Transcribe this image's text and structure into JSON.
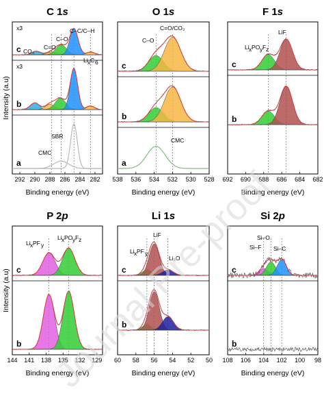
{
  "figure": {
    "ylabel": "Intensity (a.u)",
    "watermark": "Journal Pre-proof"
  },
  "colors": {
    "green": "#33cc33",
    "blue": "#1e90ff",
    "orange": "#f5b642",
    "red": "#b05050",
    "pink": "#e060e0",
    "cyan": "#30b0e0",
    "navy": "#2020a0",
    "fit": "#e04040",
    "raw": "#555555"
  },
  "chart_data": [
    {
      "id": "c1s",
      "type": "line",
      "title_main": "C 1",
      "title_orb": "s",
      "xlabel": "Binding energy (eV)",
      "xlim": [
        293,
        281
      ],
      "xticks": [
        292,
        290,
        288,
        286,
        284,
        282
      ],
      "tick_labels": [
        "292",
        "290",
        "288",
        "286",
        "284",
        "282"
      ],
      "multipliers": [
        "x3",
        "x3"
      ],
      "rows": [
        {
          "letter": "c",
          "peaks": [
            {
              "label": "CO₃",
              "center": 289.8,
              "height": 0.12,
              "width": 0.6,
              "color": "cyan"
            },
            {
              "label": "C=O",
              "center": 287.8,
              "height": 0.1,
              "width": 0.6,
              "color": "orange"
            },
            {
              "label": "C–O",
              "center": 286.5,
              "height": 0.35,
              "width": 0.7,
              "color": "green"
            },
            {
              "label": "C–C/C–H",
              "center": 284.8,
              "height": 0.9,
              "width": 0.55,
              "color": "blue"
            },
            {
              "label": "LixC6",
              "center": 282.6,
              "height": 0.1,
              "width": 0.5,
              "color": "orange"
            }
          ]
        },
        {
          "letter": "b",
          "peaks": [
            {
              "center": 290.0,
              "height": 0.15,
              "width": 0.6,
              "color": "cyan"
            },
            {
              "center": 288.0,
              "height": 0.12,
              "width": 0.6,
              "color": "orange"
            },
            {
              "center": 286.6,
              "height": 0.25,
              "width": 0.7,
              "color": "green"
            },
            {
              "center": 284.8,
              "height": 0.9,
              "width": 0.5,
              "color": "blue"
            },
            {
              "center": 282.6,
              "height": 0.08,
              "width": 0.5,
              "color": "orange"
            }
          ]
        },
        {
          "letter": "a",
          "reference": true,
          "labels": [
            "CMC",
            "SBR"
          ],
          "peaks": [
            {
              "center": 284.8,
              "height": 0.9,
              "width": 0.45,
              "color": "gray"
            },
            {
              "center": 286.5,
              "height": 0.15,
              "width": 1.0,
              "color": "gray"
            }
          ]
        }
      ],
      "refline": [
        287.8,
        286.5,
        284.8,
        282.6
      ]
    },
    {
      "id": "o1s",
      "type": "line",
      "title_main": "O 1",
      "title_orb": "s",
      "xlabel": "Binding energy (eV)",
      "xlim": [
        538,
        528
      ],
      "xticks": [
        538,
        536,
        534,
        532,
        530,
        528
      ],
      "tick_labels": [
        "538",
        "536",
        "534",
        "532",
        "530",
        "528"
      ],
      "rows": [
        {
          "letter": "c",
          "peaks": [
            {
              "label": "C–O",
              "center": 533.8,
              "height": 0.35,
              "width": 0.8,
              "color": "green"
            },
            {
              "label": "C=O/CO₃",
              "center": 532.0,
              "height": 0.75,
              "width": 0.9,
              "color": "orange"
            }
          ]
        },
        {
          "letter": "b",
          "peaks": [
            {
              "center": 533.8,
              "height": 0.35,
              "width": 0.8,
              "color": "green"
            },
            {
              "center": 532.0,
              "height": 0.85,
              "width": 0.9,
              "color": "orange"
            }
          ]
        },
        {
          "letter": "a",
          "reference": true,
          "labels": [
            "CMC"
          ],
          "peaks": [
            {
              "center": 533.8,
              "height": 0.6,
              "width": 1.0,
              "color": "green"
            }
          ]
        }
      ],
      "refline": [
        533.8,
        532.0
      ]
    },
    {
      "id": "f1s",
      "type": "line",
      "title_main": "F 1",
      "title_orb": "s",
      "xlabel": "Binding energy (eV)",
      "xlim": [
        692,
        682
      ],
      "xticks": [
        692,
        690,
        688,
        686,
        684,
        682
      ],
      "tick_labels": [
        "692",
        "690",
        "688",
        "686",
        "684",
        "682"
      ],
      "rows": [
        {
          "letter": "c",
          "peaks": [
            {
              "label": "LixPOyFz",
              "center": 687.5,
              "height": 0.35,
              "width": 0.7,
              "color": "green"
            },
            {
              "label": "LiF",
              "center": 685.5,
              "height": 0.7,
              "width": 0.7,
              "color": "red"
            }
          ]
        },
        {
          "letter": "b",
          "peaks": [
            {
              "center": 687.5,
              "height": 0.3,
              "width": 0.7,
              "color": "green"
            },
            {
              "center": 685.5,
              "height": 0.85,
              "width": 0.7,
              "color": "red"
            }
          ]
        }
      ],
      "refline": [
        687.5,
        685.5
      ]
    },
    {
      "id": "p2p",
      "type": "line",
      "title_main": "P 2",
      "title_orb": "p",
      "xlabel": "Binding energy (eV)",
      "xlim": [
        144,
        128
      ],
      "xticks": [
        144,
        141,
        138,
        135,
        132,
        129
      ],
      "tick_labels": [
        "144",
        "141",
        "138",
        "135",
        "132",
        "129"
      ],
      "rows": [
        {
          "letter": "c",
          "peaks": [
            {
              "label": "LixPFy",
              "center": 137.5,
              "height": 0.5,
              "width": 1.1,
              "color": "pink"
            },
            {
              "label": "LixPOyFz",
              "center": 134.0,
              "height": 0.6,
              "width": 1.1,
              "color": "green"
            }
          ]
        },
        {
          "letter": "b",
          "peaks": [
            {
              "center": 137.5,
              "height": 0.85,
              "width": 1.0,
              "color": "pink"
            },
            {
              "center": 134.0,
              "height": 0.9,
              "width": 1.0,
              "color": "green"
            }
          ]
        }
      ],
      "refline": [
        137.5,
        134.0
      ]
    },
    {
      "id": "li1s",
      "type": "line",
      "title_main": "Li 1",
      "title_orb": "s",
      "xlabel": "Binding energy (eV)",
      "xlim": [
        60,
        50
      ],
      "xticks": [
        60,
        58,
        56,
        54,
        52,
        50
      ],
      "tick_labels": [
        "60",
        "58",
        "56",
        "54",
        "52",
        "50"
      ],
      "rows": [
        {
          "letter": "c",
          "peaks": [
            {
              "label": "LixPFy",
              "center": 56.8,
              "height": 0.12,
              "width": 0.5,
              "color": "green"
            },
            {
              "label": "LiF",
              "center": 56.0,
              "height": 0.7,
              "width": 0.55,
              "color": "red"
            },
            {
              "label": "Li₂O",
              "center": 54.5,
              "height": 0.12,
              "width": 0.6,
              "color": "navy"
            }
          ]
        },
        {
          "letter": "b",
          "peaks": [
            {
              "center": 56.8,
              "height": 0.12,
              "width": 0.5,
              "color": "green"
            },
            {
              "center": 56.0,
              "height": 0.85,
              "width": 0.55,
              "color": "red"
            },
            {
              "center": 54.5,
              "height": 0.3,
              "width": 0.6,
              "color": "navy"
            }
          ]
        }
      ],
      "refline": [
        56.8,
        56.0,
        54.5
      ]
    },
    {
      "id": "si2p",
      "type": "line",
      "title_main": "Si 2",
      "title_orb": "p",
      "xlabel": "Binding energy (eV)",
      "xlim": [
        108,
        98
      ],
      "xticks": [
        108,
        106,
        104,
        102,
        100,
        98
      ],
      "tick_labels": [
        "108",
        "106",
        "104",
        "102",
        "100",
        "98"
      ],
      "rows": [
        {
          "letter": "c",
          "peaks": [
            {
              "label": "Si–F",
              "center": 104.0,
              "height": 0.15,
              "width": 0.5,
              "color": "pink"
            },
            {
              "label": "Si–O",
              "center": 103.2,
              "height": 0.3,
              "width": 0.5,
              "color": "green"
            },
            {
              "label": "Si–C",
              "center": 102.0,
              "height": 0.35,
              "width": 0.5,
              "color": "blue"
            }
          ]
        },
        {
          "letter": "b",
          "peaks": []
        }
      ],
      "refline": [
        104.0,
        103.2,
        102.0
      ]
    }
  ]
}
